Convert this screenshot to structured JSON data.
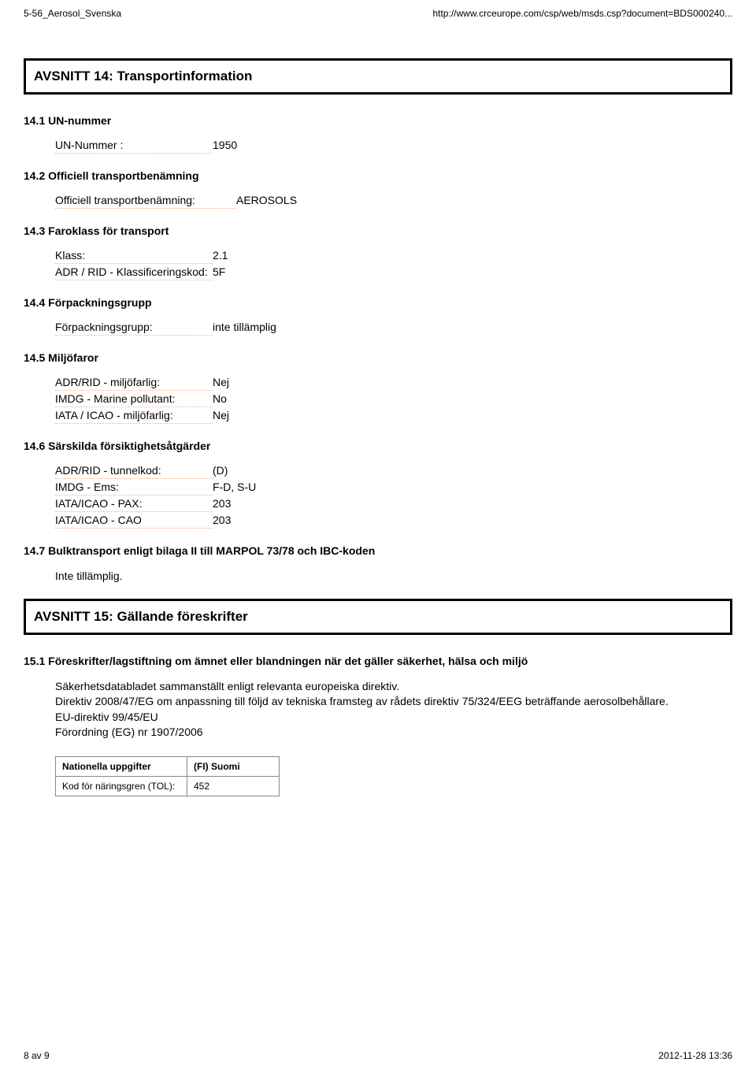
{
  "header": {
    "left": "5-56_Aerosol_Svenska",
    "right": "http://www.crceurope.com/csp/web/msds.csp?document=BDS000240..."
  },
  "section14": {
    "title": "AVSNITT 14: Transportinformation",
    "s1": {
      "heading": "14.1 UN-nummer",
      "row": {
        "label": "UN-Nummer :",
        "value": "1950"
      }
    },
    "s2": {
      "heading": "14.2 Officiell transportbenämning",
      "row": {
        "label": "Officiell transportbenämning:",
        "value": "AEROSOLS"
      }
    },
    "s3": {
      "heading": "14.3 Faroklass för transport",
      "rows": [
        {
          "label": "Klass:",
          "value": "2.1"
        },
        {
          "label": "ADR / RID - Klassificeringskod:",
          "value": "5F"
        }
      ]
    },
    "s4": {
      "heading": "14.4 Förpackningsgrupp",
      "row": {
        "label": "Förpackningsgrupp:",
        "value": "inte tillämplig"
      }
    },
    "s5": {
      "heading": "14.5 Miljöfaror",
      "rows": [
        {
          "label": "ADR/RID - miljöfarlig:",
          "value": "Nej"
        },
        {
          "label": "IMDG - Marine pollutant:",
          "value": "No"
        },
        {
          "label": "IATA / ICAO - miljöfarlig:",
          "value": "Nej"
        }
      ]
    },
    "s6": {
      "heading": "14.6 Särskilda försiktighetsåtgärder",
      "rows": [
        {
          "label": "ADR/RID - tunnelkod:",
          "value": "(D)"
        },
        {
          "label": "IMDG - Ems:",
          "value": "F-D, S-U"
        },
        {
          "label": "IATA/ICAO - PAX:",
          "value": "203"
        },
        {
          "label": "IATA/ICAO - CAO",
          "value": "203"
        }
      ]
    },
    "s7": {
      "heading": "14.7 Bulktransport enligt bilaga II till MARPOL 73/78 och IBC-koden",
      "text": "Inte tillämplig."
    }
  },
  "section15": {
    "title": "AVSNITT 15: Gällande föreskrifter",
    "s1": {
      "heading": "15.1 Föreskrifter/lagstiftning om ämnet eller blandningen när det gäller säkerhet, hälsa och miljö",
      "para": "Säkerhetsdatabladet sammanställt enligt relevanta europeiska direktiv.\nDirektiv 2008/47/EG om anpassning till följd av tekniska framsteg av rådets direktiv 75/324/EEG beträffande aerosolbehållare.\nEU-direktiv 99/45/EU\nFörordning (EG) nr 1907/2006"
    },
    "table": {
      "rows": [
        {
          "c1": "Nationella uppgifter",
          "c2": "(FI) Suomi",
          "c1bold": true,
          "c2bold": true
        },
        {
          "c1": "Kod för näringsgren (TOL):",
          "c2": "452",
          "c1bold": false,
          "c2bold": false
        }
      ]
    }
  },
  "footer": {
    "left": "8 av 9",
    "right": "2012-11-28 13:36"
  },
  "style": {
    "label_widths": {
      "default": 200,
      "wide": 230,
      "narrow": 180
    },
    "dotted_underline_color": "#f4b28d",
    "font": "Arial",
    "body_fontsize": 14,
    "small_fontsize": 12,
    "heading_fontsize": 17,
    "border_color": "#000000",
    "table_border_color": "#888888",
    "background": "#ffffff",
    "text_color": "#000000"
  }
}
